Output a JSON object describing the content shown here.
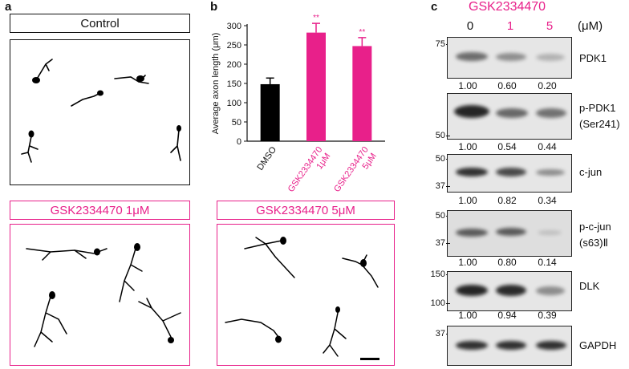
{
  "panels": {
    "a": {
      "letter": "a",
      "control_title": "Control",
      "gsk1_title": "GSK2334470 1μM",
      "gsk5_title": "GSK2334470 5μM"
    },
    "b": {
      "letter": "b"
    },
    "c": {
      "letter": "c",
      "drug_label": "GSK2334470",
      "unit_label": "(μM)",
      "lanes": [
        "0",
        "1",
        "5"
      ],
      "blots": [
        {
          "name": "PDK1",
          "name2": "",
          "markers": [
            "75"
          ],
          "quant": [
            "1.00",
            "0.60",
            "0.20"
          ]
        },
        {
          "name": "p-PDK1",
          "name2": "(Ser241)",
          "markers": [
            "50"
          ],
          "quant": [
            "1.00",
            "0.54",
            "0.44"
          ]
        },
        {
          "name": "c-jun",
          "name2": "",
          "markers": [
            "50",
            "37"
          ],
          "quant": [
            "1.00",
            "0.82",
            "0.34"
          ]
        },
        {
          "name": "p-c-jun",
          "name2": "(s63)Ⅱ",
          "markers": [
            "50",
            "37"
          ],
          "quant": [
            "1.00",
            "0.80",
            "0.14"
          ]
        },
        {
          "name": "DLK",
          "name2": "",
          "markers": [
            "150",
            "100"
          ],
          "quant": [
            "1.00",
            "0.94",
            "0.39"
          ]
        },
        {
          "name": "GAPDH",
          "name2": "",
          "markers": [
            "37"
          ],
          "quant": []
        }
      ]
    }
  },
  "chart_data": {
    "type": "bar",
    "title": "",
    "ylabel": "Average axon length (μm)",
    "xlabel": "",
    "ylim": [
      0,
      300
    ],
    "yticks": [
      "0",
      "50",
      "100",
      "150",
      "200",
      "250",
      "300"
    ],
    "categories": [
      "DMSO",
      "GSK2334470 1μM",
      "GSK2334470 5μM"
    ],
    "category_line1": [
      "DMSO",
      "GSK2334470",
      "GSK2334470"
    ],
    "category_line2": [
      "",
      "1μM",
      "5μM"
    ],
    "values": [
      148,
      282,
      247
    ],
    "errors": [
      16,
      24,
      22
    ],
    "significance": [
      "",
      "**",
      "**"
    ],
    "colors": [
      "#000000",
      "#e8208a",
      "#e8208a"
    ]
  },
  "colors": {
    "accent": "#e8208a",
    "ink": "#111111"
  }
}
